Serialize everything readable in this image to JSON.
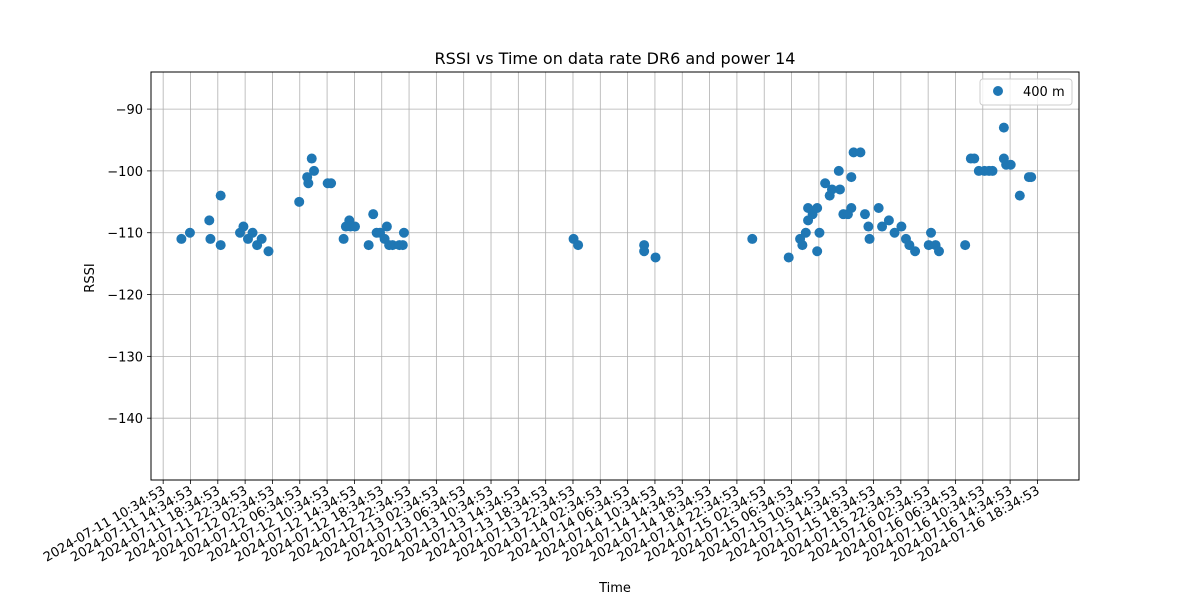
{
  "chart_data": {
    "type": "scatter",
    "title": "RSSI vs Time on data rate DR6 and power 14",
    "xlabel": "Time",
    "ylabel": "RSSI",
    "ylim": [
      -150,
      -84
    ],
    "xlim": [
      "2024-07-11T08:48:00",
      "2024-07-17T00:40:00"
    ],
    "yticks": [
      -140,
      -130,
      -120,
      -110,
      -100,
      -90
    ],
    "xticks": [
      "2024-07-11 10:34:53",
      "2024-07-11 14:34:53",
      "2024-07-11 18:34:53",
      "2024-07-11 22:34:53",
      "2024-07-12 02:34:53",
      "2024-07-12 06:34:53",
      "2024-07-12 10:34:53",
      "2024-07-12 14:34:53",
      "2024-07-12 18:34:53",
      "2024-07-12 22:34:53",
      "2024-07-13 02:34:53",
      "2024-07-13 06:34:53",
      "2024-07-13 10:34:53",
      "2024-07-13 14:34:53",
      "2024-07-13 18:34:53",
      "2024-07-13 22:34:53",
      "2024-07-14 02:34:53",
      "2024-07-14 06:34:53",
      "2024-07-14 10:34:53",
      "2024-07-14 14:34:53",
      "2024-07-14 18:34:53",
      "2024-07-14 22:34:53",
      "2024-07-15 02:34:53",
      "2024-07-15 06:34:53",
      "2024-07-15 10:34:53",
      "2024-07-15 14:34:53",
      "2024-07-15 18:34:53",
      "2024-07-15 22:34:53",
      "2024-07-16 02:34:53",
      "2024-07-16 06:34:53",
      "2024-07-16 10:34:53",
      "2024-07-16 14:34:53",
      "2024-07-16 18:34:53"
    ],
    "grid": true,
    "legend_position": "top-right",
    "series": [
      {
        "name": "400 m",
        "color": "#1f77b4",
        "marker": "circle",
        "points": [
          [
            "2024-07-11 13:15",
            -111
          ],
          [
            "2024-07-11 14:30",
            -110
          ],
          [
            "2024-07-11 17:20",
            -108
          ],
          [
            "2024-07-11 17:30",
            -111
          ],
          [
            "2024-07-11 19:00",
            -104
          ],
          [
            "2024-07-11 19:00",
            -112
          ],
          [
            "2024-07-11 21:50",
            -110
          ],
          [
            "2024-07-11 22:20",
            -109
          ],
          [
            "2024-07-11 23:00",
            -111
          ],
          [
            "2024-07-11 23:40",
            -110
          ],
          [
            "2024-07-12 00:20",
            -112
          ],
          [
            "2024-07-12 01:00",
            -111
          ],
          [
            "2024-07-12 02:00",
            -113
          ],
          [
            "2024-07-12 06:30",
            -105
          ],
          [
            "2024-07-12 07:40",
            -101
          ],
          [
            "2024-07-12 07:50",
            -102
          ],
          [
            "2024-07-12 08:20",
            -98
          ],
          [
            "2024-07-12 08:40",
            -100
          ],
          [
            "2024-07-12 10:40",
            -102
          ],
          [
            "2024-07-12 11:10",
            -102
          ],
          [
            "2024-07-12 13:00",
            -111
          ],
          [
            "2024-07-12 13:20",
            -109
          ],
          [
            "2024-07-12 13:50",
            -108
          ],
          [
            "2024-07-12 14:00",
            -109
          ],
          [
            "2024-07-12 14:40",
            -109
          ],
          [
            "2024-07-12 16:40",
            -112
          ],
          [
            "2024-07-12 17:20",
            -107
          ],
          [
            "2024-07-12 17:50",
            -110
          ],
          [
            "2024-07-12 18:20",
            -110
          ],
          [
            "2024-07-12 19:00",
            -111
          ],
          [
            "2024-07-12 19:20",
            -109
          ],
          [
            "2024-07-12 19:40",
            -112
          ],
          [
            "2024-07-12 20:10",
            -112
          ],
          [
            "2024-07-12 21:10",
            -112
          ],
          [
            "2024-07-12 21:40",
            -112
          ],
          [
            "2024-07-12 21:50",
            -110
          ],
          [
            "2024-07-13 22:40",
            -111
          ],
          [
            "2024-07-13 23:20",
            -112
          ],
          [
            "2024-07-14 09:00",
            -112
          ],
          [
            "2024-07-14 09:00",
            -113
          ],
          [
            "2024-07-14 10:40",
            -114
          ],
          [
            "2024-07-15 00:50",
            -111
          ],
          [
            "2024-07-15 06:10",
            -114
          ],
          [
            "2024-07-15 07:50",
            -111
          ],
          [
            "2024-07-15 08:10",
            -112
          ],
          [
            "2024-07-15 08:40",
            -110
          ],
          [
            "2024-07-15 09:00",
            -106
          ],
          [
            "2024-07-15 09:00",
            -108
          ],
          [
            "2024-07-15 09:40",
            -107
          ],
          [
            "2024-07-15 10:20",
            -106
          ],
          [
            "2024-07-15 10:20",
            -113
          ],
          [
            "2024-07-15 10:40",
            -110
          ],
          [
            "2024-07-15 11:30",
            -102
          ],
          [
            "2024-07-15 12:10",
            -104
          ],
          [
            "2024-07-15 12:30",
            -103
          ],
          [
            "2024-07-15 13:30",
            -100
          ],
          [
            "2024-07-15 13:40",
            -103
          ],
          [
            "2024-07-15 14:10",
            -107
          ],
          [
            "2024-07-15 14:50",
            -107
          ],
          [
            "2024-07-15 15:20",
            -101
          ],
          [
            "2024-07-15 15:20",
            -106
          ],
          [
            "2024-07-15 15:40",
            -97
          ],
          [
            "2024-07-15 16:40",
            -97
          ],
          [
            "2024-07-15 17:20",
            -107
          ],
          [
            "2024-07-15 17:50",
            -109
          ],
          [
            "2024-07-15 18:00",
            -111
          ],
          [
            "2024-07-15 19:20",
            -106
          ],
          [
            "2024-07-15 19:50",
            -109
          ],
          [
            "2024-07-15 20:50",
            -108
          ],
          [
            "2024-07-15 21:40",
            -110
          ],
          [
            "2024-07-15 22:40",
            -109
          ],
          [
            "2024-07-15 23:20",
            -111
          ],
          [
            "2024-07-15 23:50",
            -112
          ],
          [
            "2024-07-16 00:40",
            -113
          ],
          [
            "2024-07-16 02:40",
            -112
          ],
          [
            "2024-07-16 03:00",
            -110
          ],
          [
            "2024-07-16 03:40",
            -112
          ],
          [
            "2024-07-16 04:10",
            -113
          ],
          [
            "2024-07-16 08:00",
            -112
          ],
          [
            "2024-07-16 08:50",
            -98
          ],
          [
            "2024-07-16 09:20",
            -98
          ],
          [
            "2024-07-16 10:00",
            -100
          ],
          [
            "2024-07-16 10:50",
            -100
          ],
          [
            "2024-07-16 11:30",
            -100
          ],
          [
            "2024-07-16 12:00",
            -100
          ],
          [
            "2024-07-16 13:40",
            -98
          ],
          [
            "2024-07-16 13:40",
            -93
          ],
          [
            "2024-07-16 14:00",
            -99
          ],
          [
            "2024-07-16 14:40",
            -99
          ],
          [
            "2024-07-16 16:00",
            -104
          ],
          [
            "2024-07-16 17:20",
            -101
          ],
          [
            "2024-07-16 17:40",
            -101
          ]
        ]
      }
    ]
  }
}
